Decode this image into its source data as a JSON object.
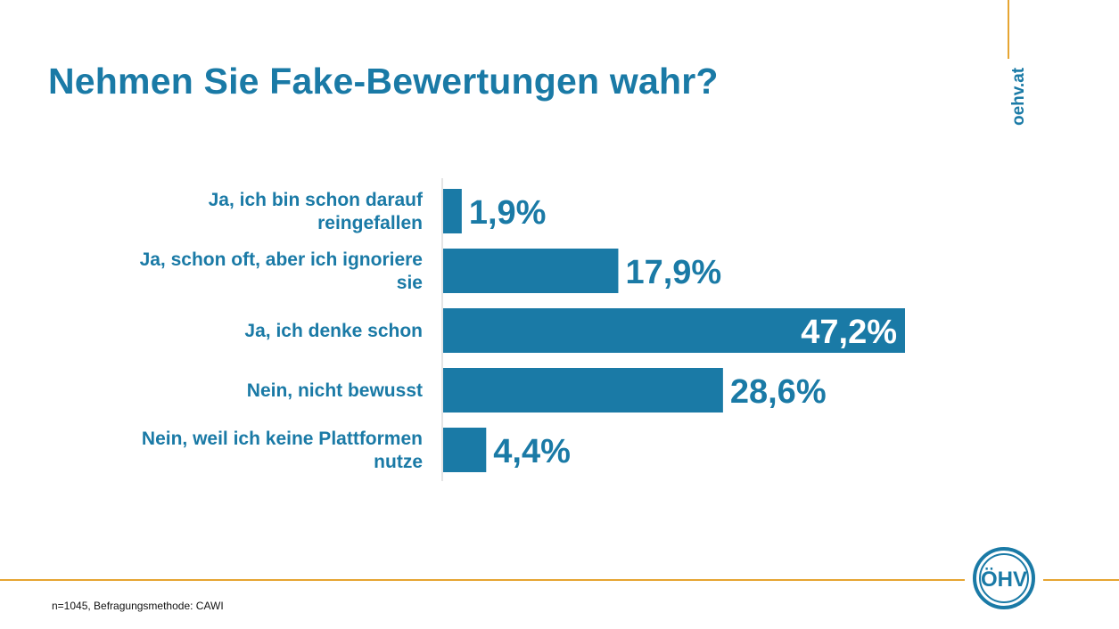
{
  "title": "Nehmen Sie Fake-Bewertungen wahr?",
  "site": "oehv.at",
  "footnote": "n=1045, Befragungsmethode: CAWI",
  "logo_text": "ÖHV",
  "colors": {
    "accent": "#1a7aa6",
    "bar": "#1a7aa6",
    "line": "#e6a532"
  },
  "chart_data": {
    "type": "bar",
    "orientation": "horizontal",
    "categories": [
      [
        "Ja, ich bin schon darauf",
        "reingefallen"
      ],
      [
        "Ja, schon oft, aber ich ignoriere",
        "sie"
      ],
      [
        "Ja, ich denke schon"
      ],
      [
        "Nein, nicht bewusst"
      ],
      [
        "Nein, weil ich keine Plattformen",
        "nutze"
      ]
    ],
    "values": [
      1.9,
      17.9,
      47.2,
      28.6,
      4.4
    ],
    "value_labels": [
      "1,9%",
      "17,9%",
      "47,2%",
      "28,6%",
      "4,4%"
    ],
    "xlim": [
      0,
      47.2
    ],
    "grid": false,
    "legend": "none"
  }
}
